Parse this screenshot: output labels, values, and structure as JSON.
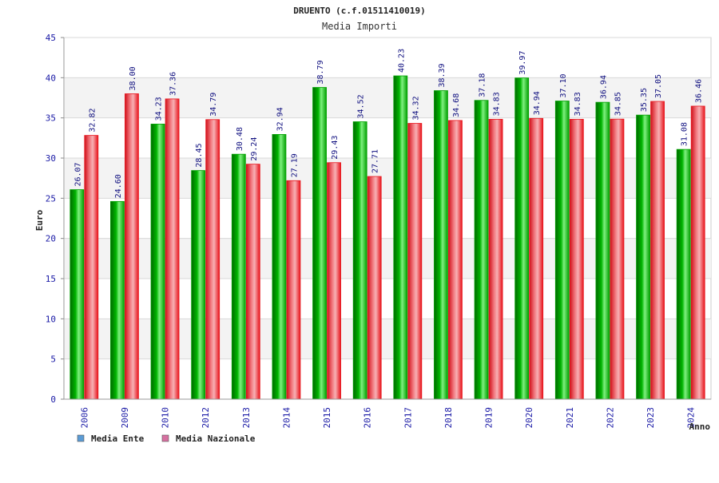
{
  "chart_data": {
    "type": "bar",
    "title": "DRUENTO (c.f.01511410019)",
    "subtitle": "Media Importi",
    "ylabel": "Euro",
    "xlabel": "Anno",
    "ylim": [
      0,
      45
    ],
    "ytick_step": 5,
    "grid": true,
    "legend_position": "bottom-left",
    "categories": [
      "2006",
      "2009",
      "2010",
      "2012",
      "2013",
      "2014",
      "2015",
      "2016",
      "2017",
      "2018",
      "2019",
      "2020",
      "2021",
      "2022",
      "2023",
      "2024"
    ],
    "series": [
      {
        "name": "Media Ente",
        "color": "#00a000",
        "legend_color": "#5b9bd5",
        "values": [
          26.07,
          24.6,
          34.23,
          28.45,
          30.48,
          32.94,
          38.79,
          34.52,
          40.23,
          38.39,
          37.18,
          39.97,
          37.1,
          36.94,
          35.35,
          31.08
        ],
        "labels": [
          "26.07",
          "24.60",
          "34.23",
          "28.45",
          "30.48",
          "32.94",
          "38.79",
          "34.52",
          "40.23",
          "38.39",
          "37.18",
          "39.97",
          "37.10",
          "36.94",
          "35.35",
          "31.08"
        ]
      },
      {
        "name": "Media Nazionale",
        "color": "#e8141c",
        "legend_color": "#d670a0",
        "values": [
          32.82,
          38.0,
          37.36,
          34.79,
          29.24,
          27.19,
          29.43,
          27.71,
          34.32,
          34.68,
          34.83,
          34.94,
          34.83,
          34.85,
          37.05,
          36.46
        ],
        "labels": [
          "32.82",
          "38.00",
          "37.36",
          "34.79",
          "29.24",
          "27.19",
          "29.43",
          "27.71",
          "34.32",
          "34.68",
          "34.83",
          "34.94",
          "34.83",
          "34.85",
          "37.05",
          "36.46"
        ]
      }
    ]
  }
}
